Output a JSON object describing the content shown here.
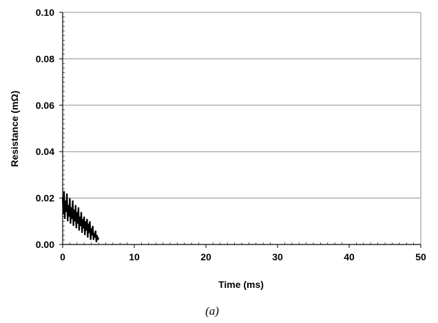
{
  "chart_data": {
    "type": "line",
    "xlabel": "Time (ms)",
    "ylabel": "Resistance (mΩ)",
    "xlim": [
      0,
      50
    ],
    "ylim": [
      0,
      0.1
    ],
    "x_ticks": [
      "0",
      "10",
      "20",
      "30",
      "40",
      "50"
    ],
    "y_ticks": [
      "0.00",
      "0.02",
      "0.04",
      "0.06",
      "0.08",
      "0.10"
    ],
    "grid": "horizontal",
    "series": [
      {
        "color": "#000000",
        "x": [
          0.0,
          0.1,
          0.2,
          0.3,
          0.4,
          0.5,
          0.6,
          0.7,
          0.8,
          0.9,
          1.0,
          1.1,
          1.2,
          1.3,
          1.4,
          1.5,
          1.6,
          1.7,
          1.8,
          1.9,
          2.0,
          2.1,
          2.2,
          2.3,
          2.4,
          2.5,
          2.6,
          2.7,
          2.8,
          2.9,
          3.0,
          3.1,
          3.2,
          3.3,
          3.4,
          3.5,
          3.6,
          3.7,
          3.8,
          3.9,
          4.0,
          4.1,
          4.2,
          4.3,
          4.4,
          4.5,
          4.6,
          4.7,
          4.8,
          4.9,
          5.0
        ],
        "y": [
          0.02,
          0.013,
          0.023,
          0.011,
          0.019,
          0.014,
          0.022,
          0.01,
          0.017,
          0.012,
          0.02,
          0.009,
          0.016,
          0.011,
          0.019,
          0.008,
          0.015,
          0.01,
          0.017,
          0.007,
          0.014,
          0.009,
          0.016,
          0.006,
          0.012,
          0.008,
          0.014,
          0.005,
          0.011,
          0.007,
          0.012,
          0.004,
          0.01,
          0.006,
          0.011,
          0.003,
          0.009,
          0.005,
          0.01,
          0.002,
          0.007,
          0.004,
          0.008,
          0.002,
          0.005,
          0.003,
          0.006,
          0.001,
          0.004,
          0.002,
          0.003
        ]
      }
    ]
  },
  "caption": "(a)"
}
